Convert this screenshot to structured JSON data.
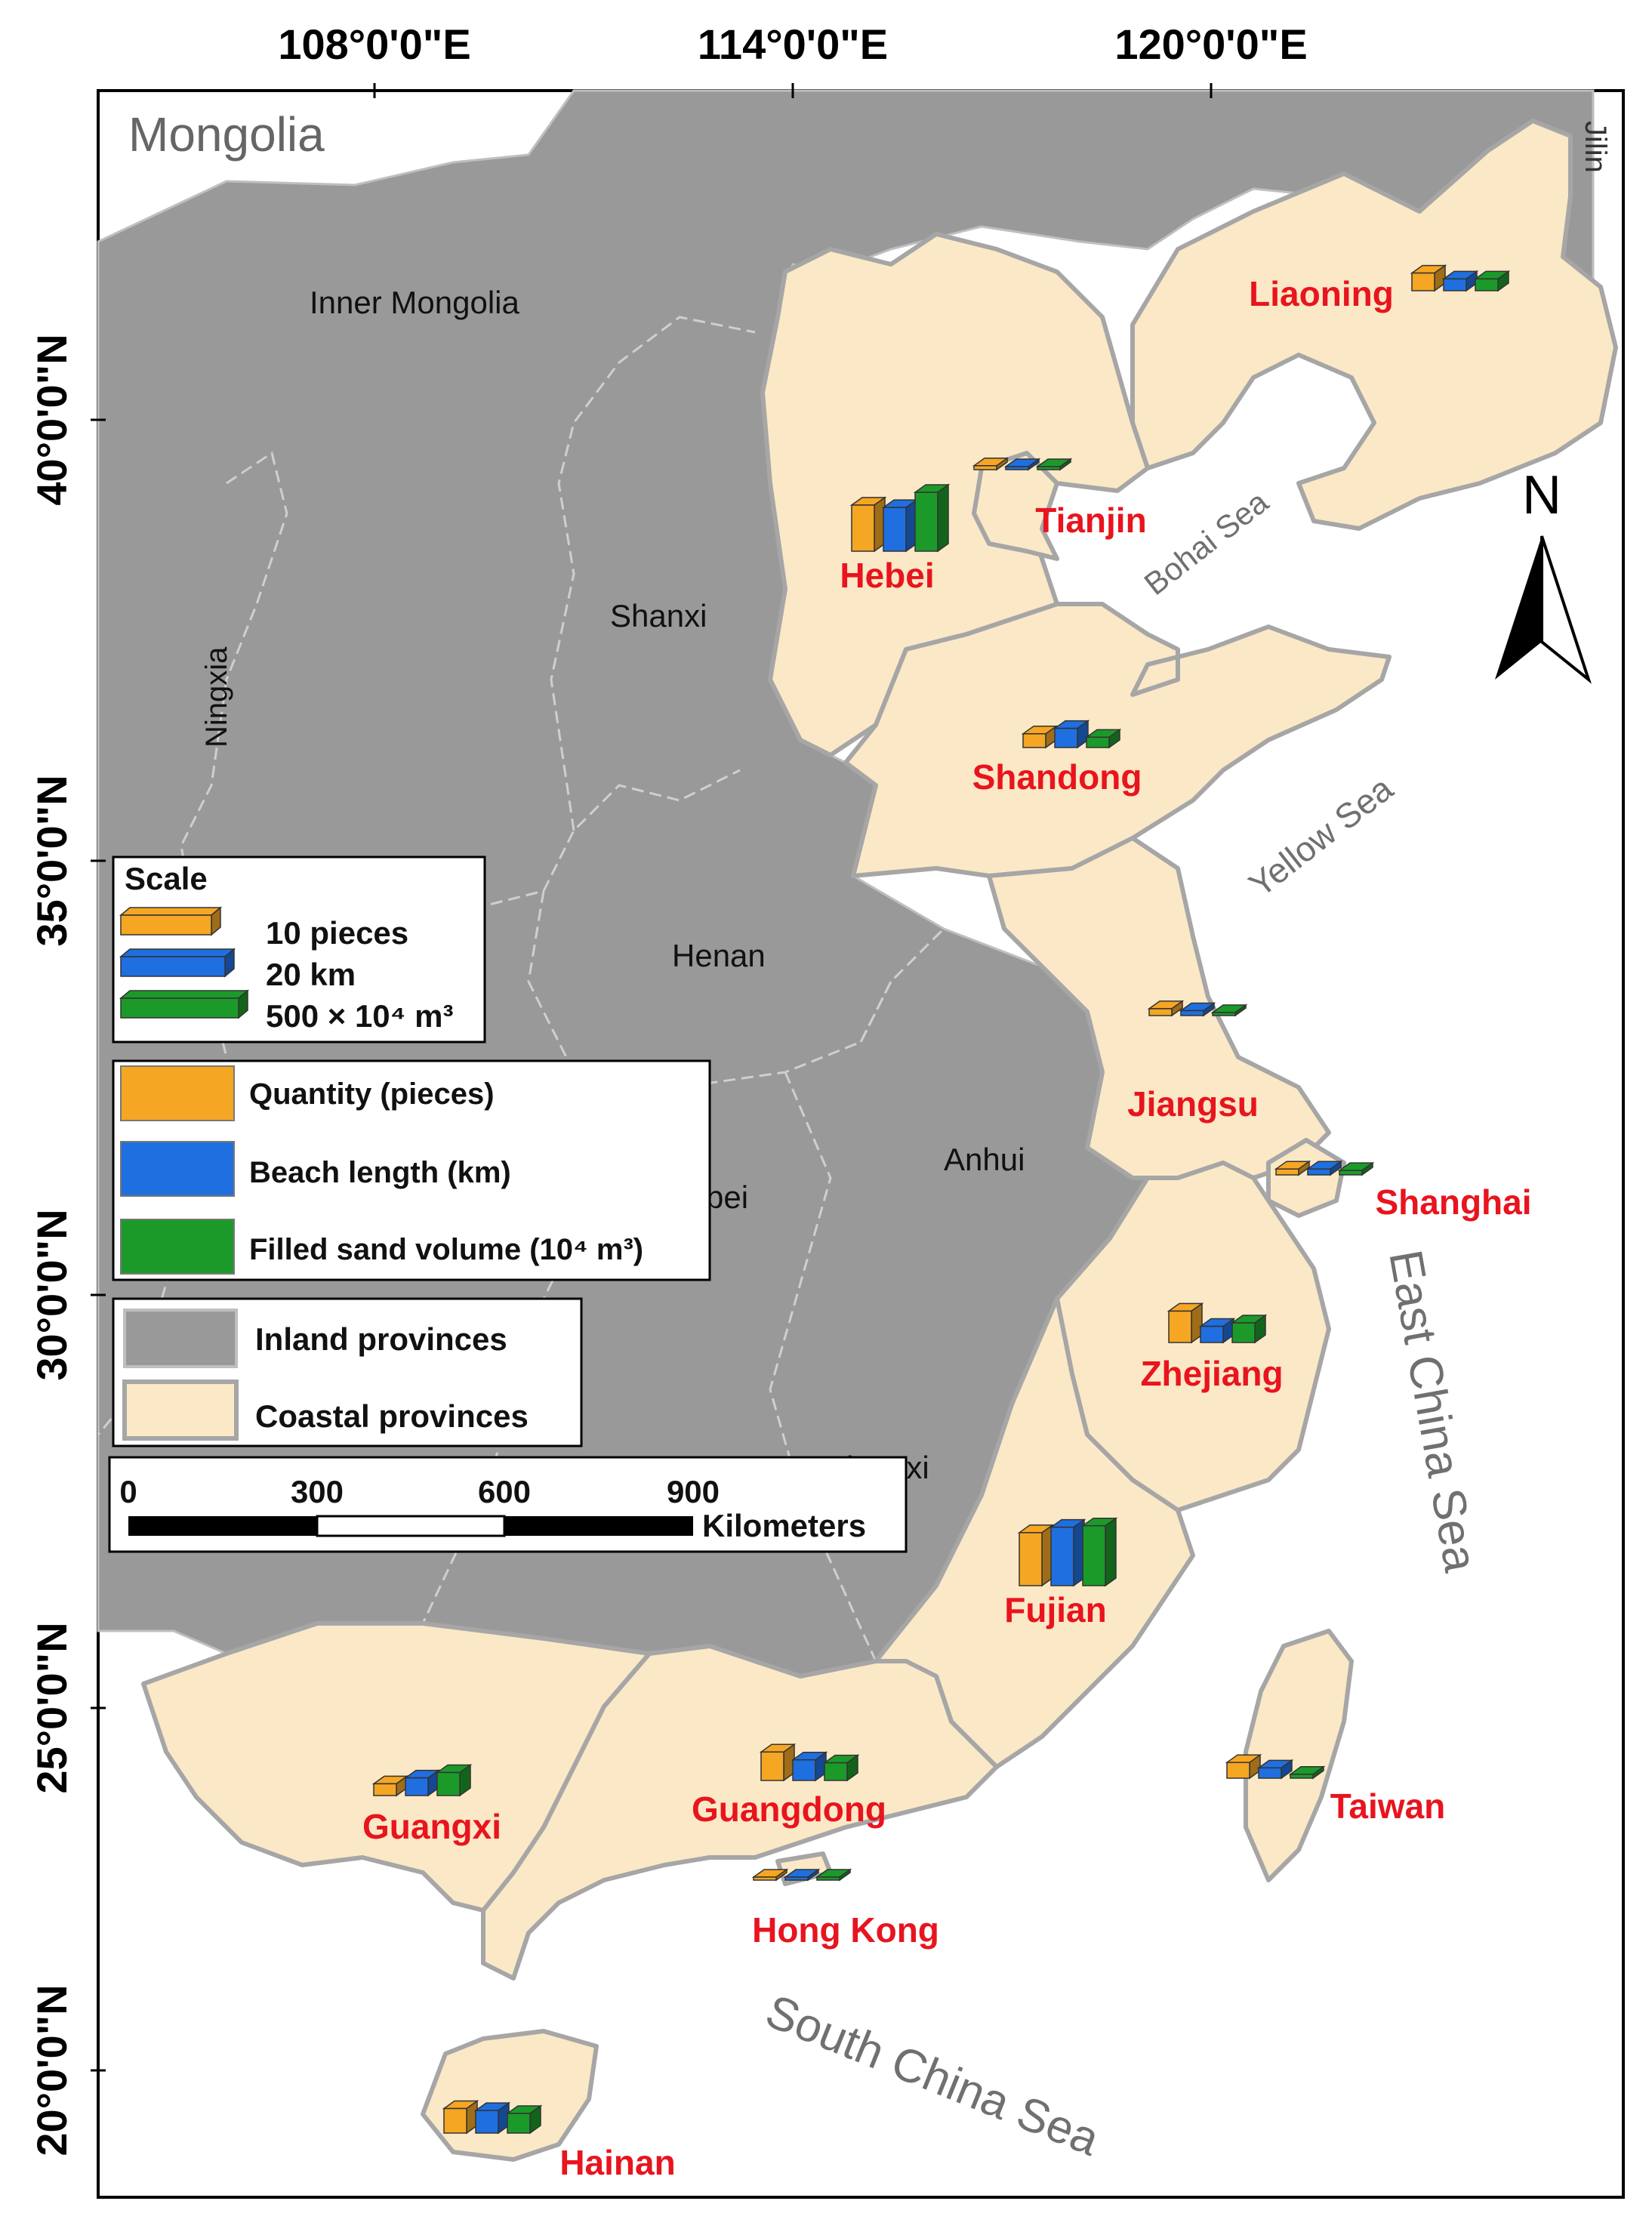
{
  "axes": {
    "longitude_labels": [
      "108°0'0\"E",
      "114°0'0\"E",
      "120°0'0\"E"
    ],
    "latitude_labels": [
      "40°0'0\"N",
      "35°0'0\"N",
      "30°0'0\"N",
      "25°0'0\"N",
      "20°0'0\"N"
    ]
  },
  "region_labels": {
    "mongolia": "Mongolia",
    "jilin": "Jilin",
    "inland": {
      "inner_mongolia": "Inner Mongolia",
      "shanxi": "Shanxi",
      "ningxia": "Ningxia",
      "henan": "Henan",
      "anhui": "Anhui",
      "hubei_partial": "bei",
      "jiangxi_partial": "Jiangxi"
    }
  },
  "seas": {
    "bohai": "Bohai Sea",
    "yellow": "Yellow Sea",
    "east_china": "East China Sea",
    "south_china": "South China Sea"
  },
  "north_arrow": {
    "label": "N"
  },
  "legend": {
    "scale_title": "Scale",
    "scale_items": [
      {
        "label": "10 pieces",
        "color": "#f5a623"
      },
      {
        "label": "20 km",
        "color": "#1f6fe0"
      },
      {
        "label": "500 × 10⁴ m³",
        "color": "#1b9a2a"
      }
    ],
    "series_items": [
      {
        "label": "Quantity (pieces)",
        "color": "#f5a623"
      },
      {
        "label": "Beach length (km)",
        "color": "#1f6fe0"
      },
      {
        "label": "Filled sand volume (10⁴ m³)",
        "color": "#1b9a2a"
      }
    ],
    "area_items": [
      {
        "label": "Inland provinces",
        "color": "#999999"
      },
      {
        "label": "Coastal provinces",
        "color": "#fbe8c6"
      }
    ]
  },
  "scalebar": {
    "ticks": [
      "0",
      "300",
      "600",
      "900"
    ],
    "unit": "Kilometers"
  },
  "chart_data": {
    "type": "bar",
    "series_names": [
      "Quantity (pieces)",
      "Beach length (km)",
      "Filled sand volume (10⁴ m³)"
    ],
    "scale_units": {
      "quantity": 10,
      "length": 20,
      "volume": 500
    },
    "provinces": [
      {
        "name": "Liaoning",
        "values": [
          18,
          24,
          600
        ]
      },
      {
        "name": "Hebei",
        "values": [
          47,
          89,
          3000
        ]
      },
      {
        "name": "Tianjin",
        "values": [
          4,
          6,
          150
        ]
      },
      {
        "name": "Shandong",
        "values": [
          14,
          39,
          525
        ]
      },
      {
        "name": "Jiangsu",
        "values": [
          7,
          10,
          140
        ]
      },
      {
        "name": "Shanghai",
        "values": [
          6,
          12,
          225
        ]
      },
      {
        "name": "Zhejiang",
        "values": [
          32,
          33,
          1000
        ]
      },
      {
        "name": "Fujian",
        "values": [
          54,
          119,
          3050
        ]
      },
      {
        "name": "Taiwan",
        "values": [
          16,
          21,
          200
        ]
      },
      {
        "name": "Guangdong",
        "values": [
          29,
          42,
          900
        ]
      },
      {
        "name": "Hong Kong",
        "values": [
          3,
          6,
          125
        ]
      },
      {
        "name": "Guangxi",
        "values": [
          12,
          36,
          1175
        ]
      },
      {
        "name": "Hainan",
        "values": [
          25,
          46,
          1000
        ]
      }
    ]
  }
}
